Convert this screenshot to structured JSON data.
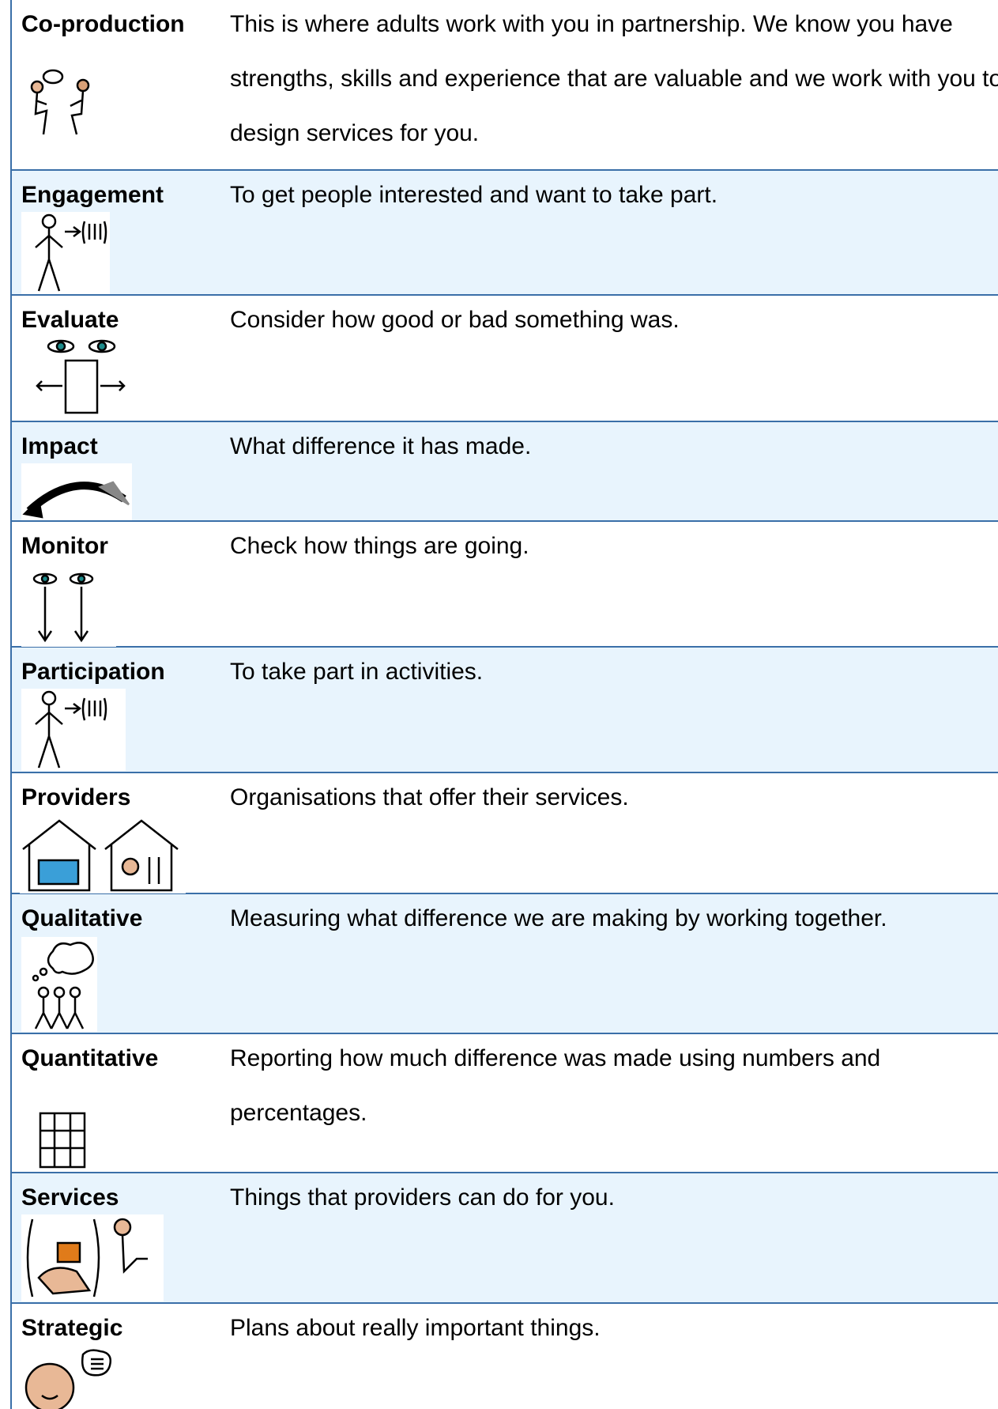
{
  "table": {
    "rows": [
      [
        "Co-production",
        "This is where adults work with you in partnership. We know you have strengths, skills and experience that are valuable and we work with you to design services for you."
      ],
      [
        "Engagement",
        "To get people interested and want to take part."
      ],
      [
        "Evaluate",
        "Consider how good or bad something was."
      ],
      [
        "Impact",
        "What difference it has made."
      ],
      [
        "Monitor",
        "Check how things are going."
      ],
      [
        "Participation",
        "To take part in activities."
      ],
      [
        "Providers",
        "Organisations that offer their services."
      ],
      [
        "Qualitative",
        "Measuring what difference we are making by working together."
      ],
      [
        "Quantitative",
        "Reporting how much difference was made using numbers and percentages."
      ],
      [
        "Services",
        "Things that providers can do for you."
      ],
      [
        "Strategic",
        "Plans about really important things."
      ]
    ]
  }
}
